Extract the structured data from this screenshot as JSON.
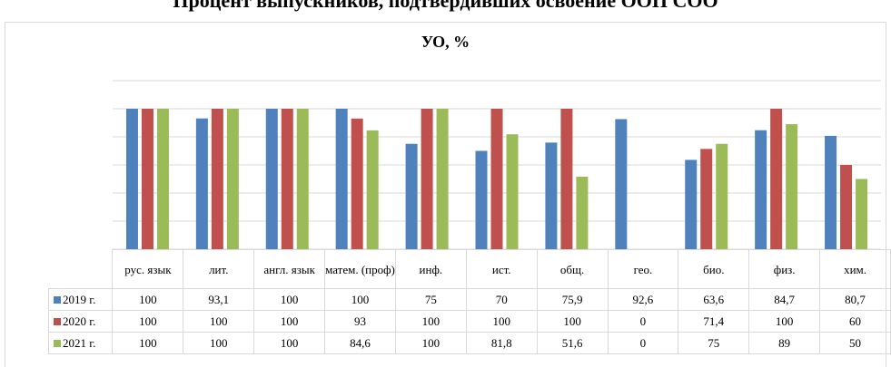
{
  "page_title": "Процент выпускников, подтвердивших освоение ООП СОО",
  "chart_data": {
    "type": "bar",
    "title": "УО, %",
    "categories": [
      "рус. язык",
      "лит.",
      "англ. язык",
      "матем. (проф)",
      "инф.",
      "ист.",
      "общ.",
      "гео.",
      "био.",
      "физ.",
      "хим."
    ],
    "series": [
      {
        "name": "2019 г.",
        "color": "#4f81bd",
        "values": [
          100,
          93.1,
          100,
          100,
          75,
          70,
          75.9,
          92.6,
          63.6,
          84.7,
          80.7
        ],
        "labels": [
          "100",
          "93,1",
          "100",
          "100",
          "75",
          "70",
          "75,9",
          "92,6",
          "63,6",
          "84,7",
          "80,7"
        ]
      },
      {
        "name": "2020 г.",
        "color": "#c0504d",
        "values": [
          100,
          100,
          100,
          93,
          100,
          100,
          100,
          0,
          71.4,
          100,
          60
        ],
        "labels": [
          "100",
          "100",
          "100",
          "93",
          "100",
          "100",
          "100",
          "0",
          "71,4",
          "100",
          "60"
        ]
      },
      {
        "name": "2021 г.",
        "color": "#9bbb59",
        "values": [
          100,
          100,
          100,
          84.6,
          100,
          81.8,
          51.6,
          0,
          75,
          89,
          50
        ],
        "labels": [
          "100",
          "100",
          "100",
          "84,6",
          "100",
          "81,8",
          "51,6",
          "0",
          "75",
          "89",
          "50"
        ]
      }
    ],
    "ylim": [
      0,
      120
    ],
    "gridlines": [
      0,
      20,
      40,
      60,
      80,
      100,
      120
    ],
    "legend_placement": "data-table",
    "grid": true
  }
}
